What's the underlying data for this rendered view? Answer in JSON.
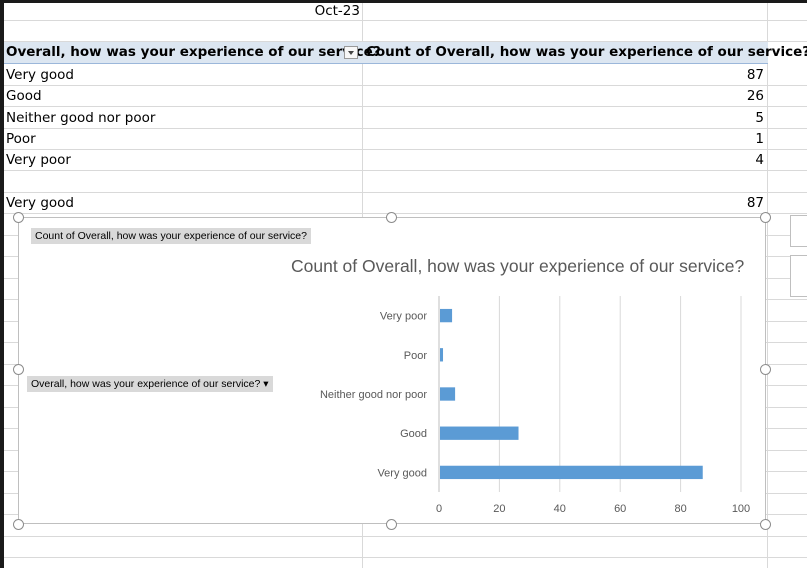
{
  "date_label": "Oct-23",
  "pivot": {
    "row_header": "Overall, how was your experience of our service?",
    "value_header": "Count of Overall, how was your experience of our service?",
    "rows": [
      {
        "label": "Very good",
        "count": "87"
      },
      {
        "label": "Good",
        "count": "26"
      },
      {
        "label": "Neither good nor poor",
        "count": "5"
      },
      {
        "label": "Poor",
        "count": "1"
      },
      {
        "label": "Very poor",
        "count": "4"
      }
    ]
  },
  "extra_row": {
    "label": "Very good",
    "count": "87"
  },
  "chart": {
    "value_field_button": "Count of Overall, how was your experience of our service?",
    "axis_field_button": "Overall, how was your experience of our service? ▾"
  },
  "chart_data": {
    "type": "bar",
    "orientation": "horizontal",
    "title": "Count of Overall, how was your experience of our service?",
    "categories": [
      "Very good",
      "Good",
      "Neither good nor poor",
      "Poor",
      "Very poor"
    ],
    "values": [
      87,
      26,
      5,
      1,
      4
    ],
    "xlim": [
      0,
      100
    ],
    "x_ticks": [
      0,
      20,
      40,
      60,
      80,
      100
    ],
    "grid": true,
    "legend": "none",
    "bar_color": "#5b9bd5"
  }
}
